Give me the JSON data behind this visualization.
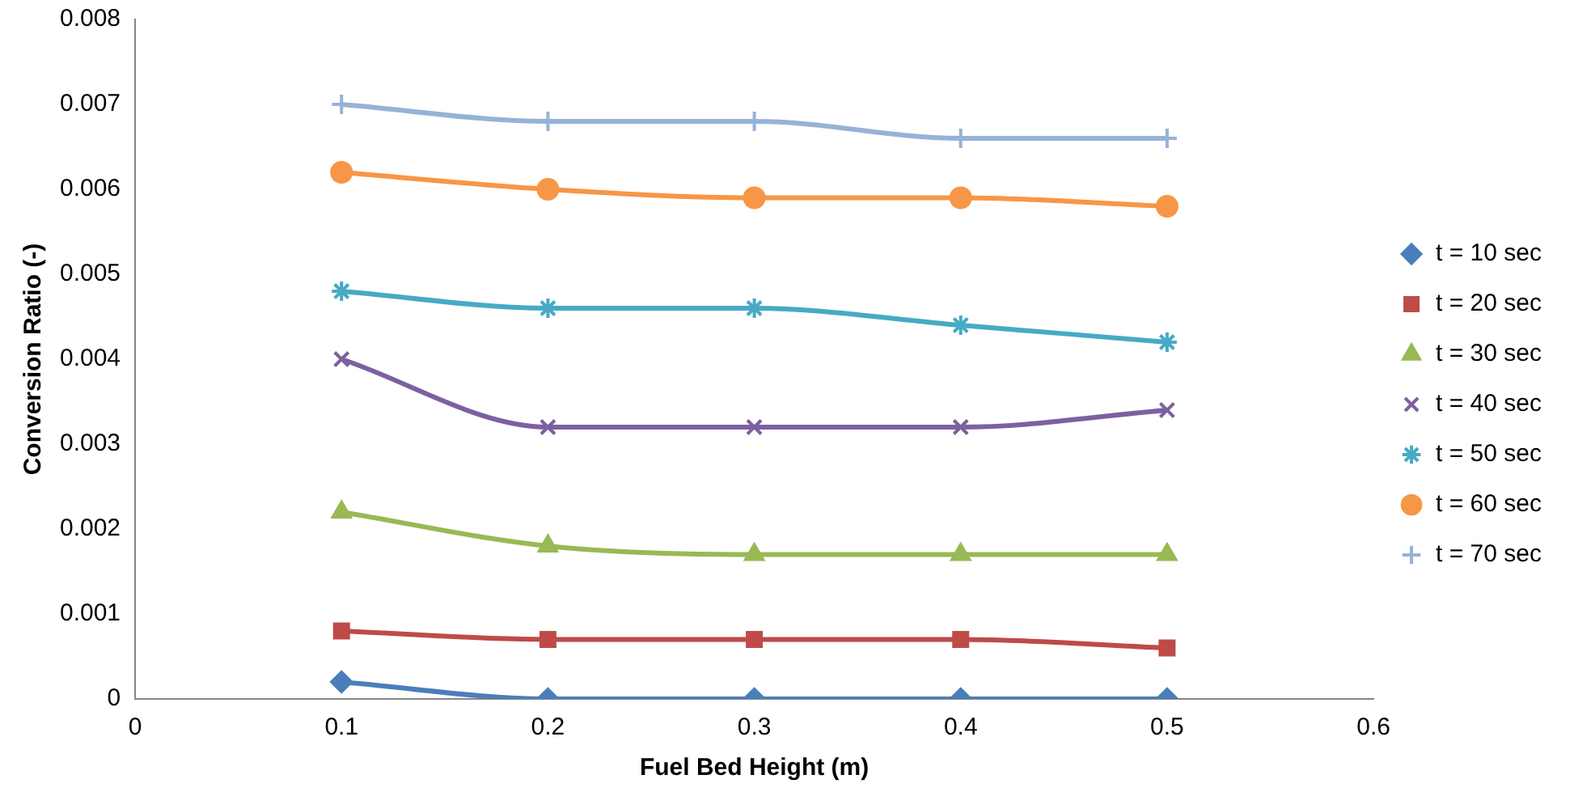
{
  "chart_data": {
    "type": "line",
    "xlabel": "Fuel Bed Height (m)",
    "ylabel": "Conversion Ratio (-)",
    "x": [
      0.1,
      0.2,
      0.3,
      0.4,
      0.5
    ],
    "xlim": [
      0,
      0.6
    ],
    "xticks": [
      0,
      0.1,
      0.2,
      0.3,
      0.4,
      0.5,
      0.6
    ],
    "ylim": [
      0,
      0.008
    ],
    "yticks": [
      0,
      0.001,
      0.002,
      0.003,
      0.004,
      0.005,
      0.006,
      0.007,
      0.008
    ],
    "grid": false,
    "legend": "right",
    "line_style": "solid",
    "series": [
      {
        "name": "t = 10 sec",
        "color": "#4a7ebb",
        "marker": "diamond",
        "values": [
          0.0002,
          0,
          0,
          0,
          0
        ]
      },
      {
        "name": "t = 20 sec",
        "color": "#be4b48",
        "marker": "square",
        "values": [
          0.0008,
          0.0007,
          0.0007,
          0.0007,
          0.0006
        ]
      },
      {
        "name": "t = 30 sec",
        "color": "#98b954",
        "marker": "triangle",
        "values": [
          0.0022,
          0.0018,
          0.0017,
          0.0017,
          0.0017
        ]
      },
      {
        "name": "t = 40 sec",
        "color": "#7d60a0",
        "marker": "x",
        "values": [
          0.004,
          0.0032,
          0.0032,
          0.0032,
          0.0034
        ]
      },
      {
        "name": "t = 50 sec",
        "color": "#46aac5",
        "marker": "cross",
        "values": [
          0.0048,
          0.0046,
          0.0046,
          0.0044,
          0.0042
        ]
      },
      {
        "name": "t = 60 sec",
        "color": "#f79646",
        "marker": "circle",
        "values": [
          0.0062,
          0.006,
          0.0059,
          0.0059,
          0.0058
        ]
      },
      {
        "name": "t = 70 sec",
        "color": "#95b3d7",
        "marker": "plus",
        "values": [
          0.007,
          0.0068,
          0.0068,
          0.0066,
          0.0066
        ]
      }
    ]
  }
}
